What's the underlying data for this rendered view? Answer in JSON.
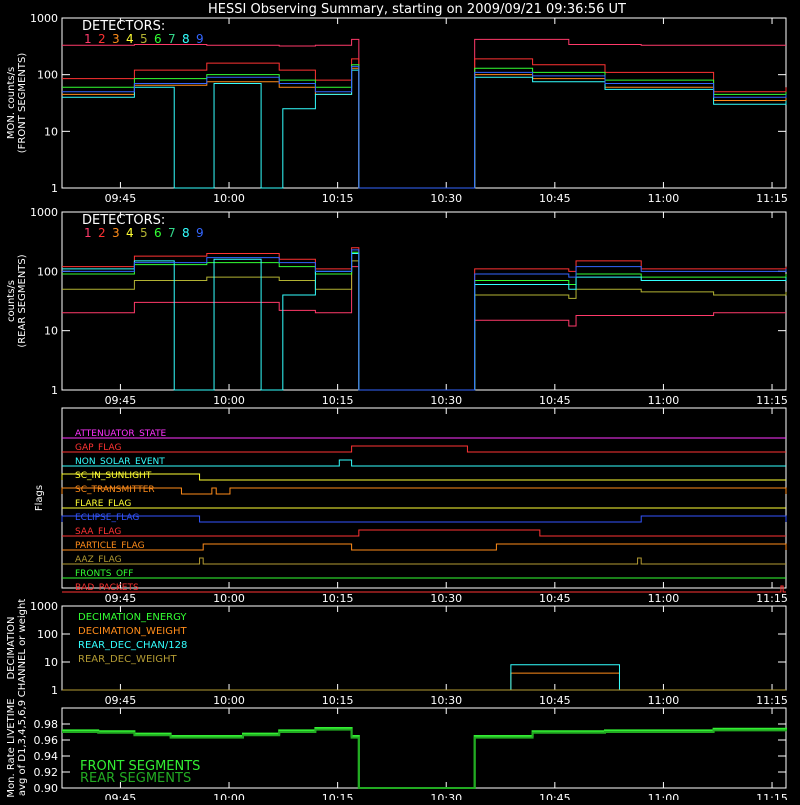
{
  "title": "HESSI Observing Summary, starting on 2009/09/21 09:36:56 UT",
  "detectors_label": "DETECTORS:",
  "detectors": [
    {
      "n": "1",
      "color": "#ff3a6a"
    },
    {
      "n": "2",
      "color": "#ff3333"
    },
    {
      "n": "3",
      "color": "#ff8c1a"
    },
    {
      "n": "4",
      "color": "#ffff33"
    },
    {
      "n": "5",
      "color": "#b3b333"
    },
    {
      "n": "6",
      "color": "#33ff33"
    },
    {
      "n": "7",
      "color": "#33d68a"
    },
    {
      "n": "8",
      "color": "#33ffff"
    },
    {
      "n": "9",
      "color": "#3366ff"
    }
  ],
  "colors": {
    "axis": "#ffffff",
    "front_live": "#33ee33",
    "rear_live": "#22aa22"
  },
  "chart_data": [
    {
      "id": "front",
      "type": "line",
      "ylabel": [
        "MON. counts/s",
        "(FRONT SEGMENTS)"
      ],
      "yscale": "log",
      "ylim": [
        1,
        1000
      ],
      "yticks": [
        "1",
        "10",
        "100",
        "1000"
      ],
      "xticks": [
        "09:45",
        "10:00",
        "10:15",
        "10:30",
        "10:45",
        "11:00",
        "11:15"
      ],
      "x_minutes_after_0936": [
        8.07,
        23.07,
        38.07,
        53.07,
        68.07,
        83.07,
        98.07
      ],
      "series": [
        {
          "det": "1",
          "x": [
            0,
            10,
            20,
            30,
            35,
            40,
            41,
            56,
            57,
            70,
            80,
            90,
            100
          ],
          "y": [
            330,
            340,
            330,
            320,
            330,
            420,
            1,
            1,
            420,
            340,
            330,
            330,
            330
          ]
        },
        {
          "det": "2",
          "x": [
            0,
            10,
            20,
            30,
            35,
            40,
            41,
            56,
            57,
            65,
            75,
            90,
            100
          ],
          "y": [
            85,
            120,
            160,
            120,
            80,
            190,
            1,
            1,
            190,
            150,
            110,
            50,
            60
          ]
        },
        {
          "det": "6",
          "x": [
            0,
            10,
            20,
            30,
            35,
            40,
            41,
            56,
            57,
            65,
            75,
            90,
            100
          ],
          "y": [
            60,
            85,
            100,
            80,
            60,
            150,
            1,
            1,
            130,
            110,
            80,
            45,
            50
          ]
        },
        {
          "det": "3",
          "x": [
            0,
            10,
            20,
            30,
            35,
            40,
            41,
            56,
            57,
            65,
            75,
            90,
            100
          ],
          "y": [
            45,
            65,
            75,
            60,
            45,
            130,
            1,
            1,
            100,
            85,
            60,
            35,
            40
          ]
        },
        {
          "det": "8",
          "x": [
            0,
            10,
            15,
            15.5,
            20.5,
            21,
            27,
            27.5,
            30,
            30.5,
            35,
            40,
            41,
            56,
            57,
            65,
            75,
            90,
            100
          ],
          "y": [
            40,
            60,
            60,
            1,
            1,
            70,
            70,
            1,
            1,
            25,
            45,
            120,
            1,
            1,
            90,
            75,
            55,
            30,
            35
          ]
        },
        {
          "det": "9",
          "x": [
            0,
            10,
            20,
            30,
            35,
            40,
            41,
            56,
            57,
            65,
            75,
            90,
            100
          ],
          "y": [
            50,
            70,
            90,
            70,
            50,
            140,
            1,
            1,
            110,
            95,
            70,
            40,
            45
          ]
        }
      ]
    },
    {
      "id": "rear",
      "type": "line",
      "ylabel": [
        "counts/s",
        "(REAR SEGMENTS)"
      ],
      "yscale": "log",
      "ylim": [
        1,
        1000
      ],
      "yticks": [
        "1",
        "10",
        "100",
        "1000"
      ],
      "xticks": [
        "09:45",
        "10:00",
        "10:15",
        "10:30",
        "10:45",
        "11:00",
        "11:15"
      ],
      "series": [
        {
          "det": "1",
          "x": [
            0,
            10,
            20,
            30,
            35,
            40,
            41,
            56,
            57,
            70,
            71,
            80,
            90,
            100
          ],
          "y": [
            20,
            30,
            30,
            22,
            20,
            120,
            1,
            1,
            15,
            12,
            18,
            18,
            20,
            20
          ]
        },
        {
          "det": "2",
          "x": [
            0,
            10,
            20,
            30,
            35,
            40,
            41,
            56,
            57,
            70,
            71,
            80,
            90,
            100
          ],
          "y": [
            120,
            180,
            200,
            160,
            110,
            250,
            1,
            1,
            110,
            100,
            150,
            110,
            110,
            120
          ]
        },
        {
          "det": "5",
          "x": [
            0,
            10,
            20,
            30,
            35,
            40,
            41,
            56,
            57,
            70,
            71,
            80,
            90,
            100
          ],
          "y": [
            50,
            70,
            80,
            70,
            50,
            150,
            1,
            1,
            40,
            35,
            50,
            45,
            40,
            45
          ]
        },
        {
          "det": "6",
          "x": [
            0,
            10,
            20,
            30,
            35,
            40,
            41,
            56,
            57,
            70,
            71,
            80,
            90,
            100
          ],
          "y": [
            90,
            130,
            140,
            120,
            90,
            210,
            1,
            1,
            70,
            60,
            90,
            80,
            80,
            90
          ]
        },
        {
          "det": "8",
          "x": [
            0,
            10,
            15,
            15.5,
            20.5,
            21,
            27,
            27.5,
            30,
            30.5,
            35,
            40,
            41,
            56,
            57,
            70,
            71,
            80,
            90,
            100
          ],
          "y": [
            110,
            150,
            150,
            1,
            1,
            160,
            160,
            1,
            1,
            40,
            100,
            200,
            1,
            1,
            60,
            50,
            80,
            70,
            70,
            80
          ]
        },
        {
          "det": "9",
          "x": [
            0,
            10,
            20,
            30,
            35,
            40,
            41,
            56,
            57,
            70,
            71,
            80,
            90,
            100
          ],
          "y": [
            100,
            140,
            170,
            140,
            100,
            230,
            1,
            1,
            90,
            80,
            120,
            100,
            100,
            110
          ]
        }
      ]
    },
    {
      "id": "flags",
      "type": "line",
      "ylabel": "Flags",
      "xticks": [
        "09:45",
        "10:00",
        "10:15",
        "10:30",
        "10:45",
        "11:00",
        "11:15"
      ],
      "flags": [
        {
          "name": "ATTENUATOR_STATE",
          "color": "#ff33ff",
          "transitions": []
        },
        {
          "name": "GAP_FLAG",
          "color": "#ff3333",
          "transitions": [
            [
              40,
              56
            ]
          ]
        },
        {
          "name": "NON_SOLAR_EVENT",
          "color": "#33ffff",
          "transitions": [
            [
              38.3,
              40
            ]
          ]
        },
        {
          "name": "SC_IN_SUNLIGHT",
          "color": "#ffff33",
          "transitions": [
            [
              0,
              19
            ]
          ]
        },
        {
          "name": "SC_TRANSMITTER",
          "color": "#ff8c1a",
          "transitions": [
            [
              0,
              16.5
            ],
            [
              20.7,
              21.3
            ],
            [
              23.2,
              100
            ]
          ]
        },
        {
          "name": "FLARE_FLAG",
          "color": "#ffff33",
          "transitions": []
        },
        {
          "name": "ECLIPSE_FLAG",
          "color": "#3355ff",
          "transitions": [
            [
              0,
              19
            ],
            [
              80,
              100
            ]
          ]
        },
        {
          "name": "SAA_FLAG",
          "color": "#ff3333",
          "transitions": [
            [
              41,
              66
            ]
          ]
        },
        {
          "name": "PARTICLE_FLAG",
          "color": "#ff8c1a",
          "transitions": [
            [
              19.5,
              40
            ],
            [
              60,
              100
            ]
          ]
        },
        {
          "name": "AAZ_FLAG",
          "color": "#b39b33",
          "transitions": [
            [
              19,
              19.5
            ],
            [
              79.5,
              80
            ]
          ]
        },
        {
          "name": "FRONTS_OFF",
          "color": "#33ff33",
          "transitions": []
        },
        {
          "name": "BAD_PACKETS",
          "color": "#ff3333",
          "transitions": [
            [
              99.3,
              99.6
            ]
          ]
        }
      ]
    },
    {
      "id": "decimation",
      "type": "line",
      "ylabel": [
        "DECIMATION",
        "CHANNEL or weight"
      ],
      "yscale": "log",
      "ylim": [
        1,
        1000
      ],
      "yticks": [
        "1",
        "10",
        "100",
        "1000"
      ],
      "xticks": [
        "09:45",
        "10:00",
        "10:15",
        "10:30",
        "10:45",
        "11:00",
        "11:15"
      ],
      "series": [
        {
          "name": "DECIMATION_ENERGY",
          "color": "#33ff33",
          "x": [
            0,
            100
          ],
          "y": [
            1,
            1
          ]
        },
        {
          "name": "DECIMATION_WEIGHT",
          "color": "#ff8c1a",
          "x": [
            0,
            62,
            62,
            77,
            77,
            100
          ],
          "y": [
            1,
            1,
            4,
            4,
            1,
            1
          ]
        },
        {
          "name": "REAR_DEC_CHAN/128",
          "color": "#33ffff",
          "x": [
            0,
            62,
            62,
            77,
            77,
            100
          ],
          "y": [
            1,
            1,
            8,
            8,
            1,
            1
          ]
        },
        {
          "name": "REAR_DEC_WEIGHT",
          "color": "#b39b33",
          "x": [
            0,
            100
          ],
          "y": [
            1,
            1
          ]
        }
      ]
    },
    {
      "id": "livetime",
      "type": "line",
      "ylabel": [
        "Mon. Rate LIVETIME",
        "avg of D1,3,4,5,6,9"
      ],
      "ylim": [
        0.9,
        1.0
      ],
      "yticks": [
        "0.90",
        "0.92",
        "0.94",
        "0.96",
        "0.98"
      ],
      "xticks": [
        "09:45",
        "10:00",
        "10:15",
        "10:30",
        "10:45",
        "11:00",
        "11:15"
      ],
      "legend": [
        "FRONT SEGMENTS",
        "REAR SEGMENTS"
      ],
      "series": [
        {
          "name": "FRONT SEGMENTS",
          "x": [
            0,
            5,
            10,
            15,
            20,
            25,
            30,
            35,
            40,
            41,
            56,
            57,
            65,
            75,
            90,
            100
          ],
          "y": [
            0.972,
            0.971,
            0.968,
            0.965,
            0.965,
            0.968,
            0.972,
            0.975,
            0.965,
            0.9,
            0.9,
            0.965,
            0.971,
            0.972,
            0.974,
            0.973
          ]
        },
        {
          "name": "REAR SEGMENTS",
          "x": [
            0,
            5,
            10,
            15,
            20,
            25,
            30,
            35,
            40,
            41,
            56,
            57,
            65,
            75,
            90,
            100
          ],
          "y": [
            0.97,
            0.969,
            0.966,
            0.963,
            0.963,
            0.966,
            0.97,
            0.973,
            0.963,
            0.9,
            0.9,
            0.963,
            0.969,
            0.97,
            0.972,
            0.971
          ]
        }
      ]
    }
  ]
}
